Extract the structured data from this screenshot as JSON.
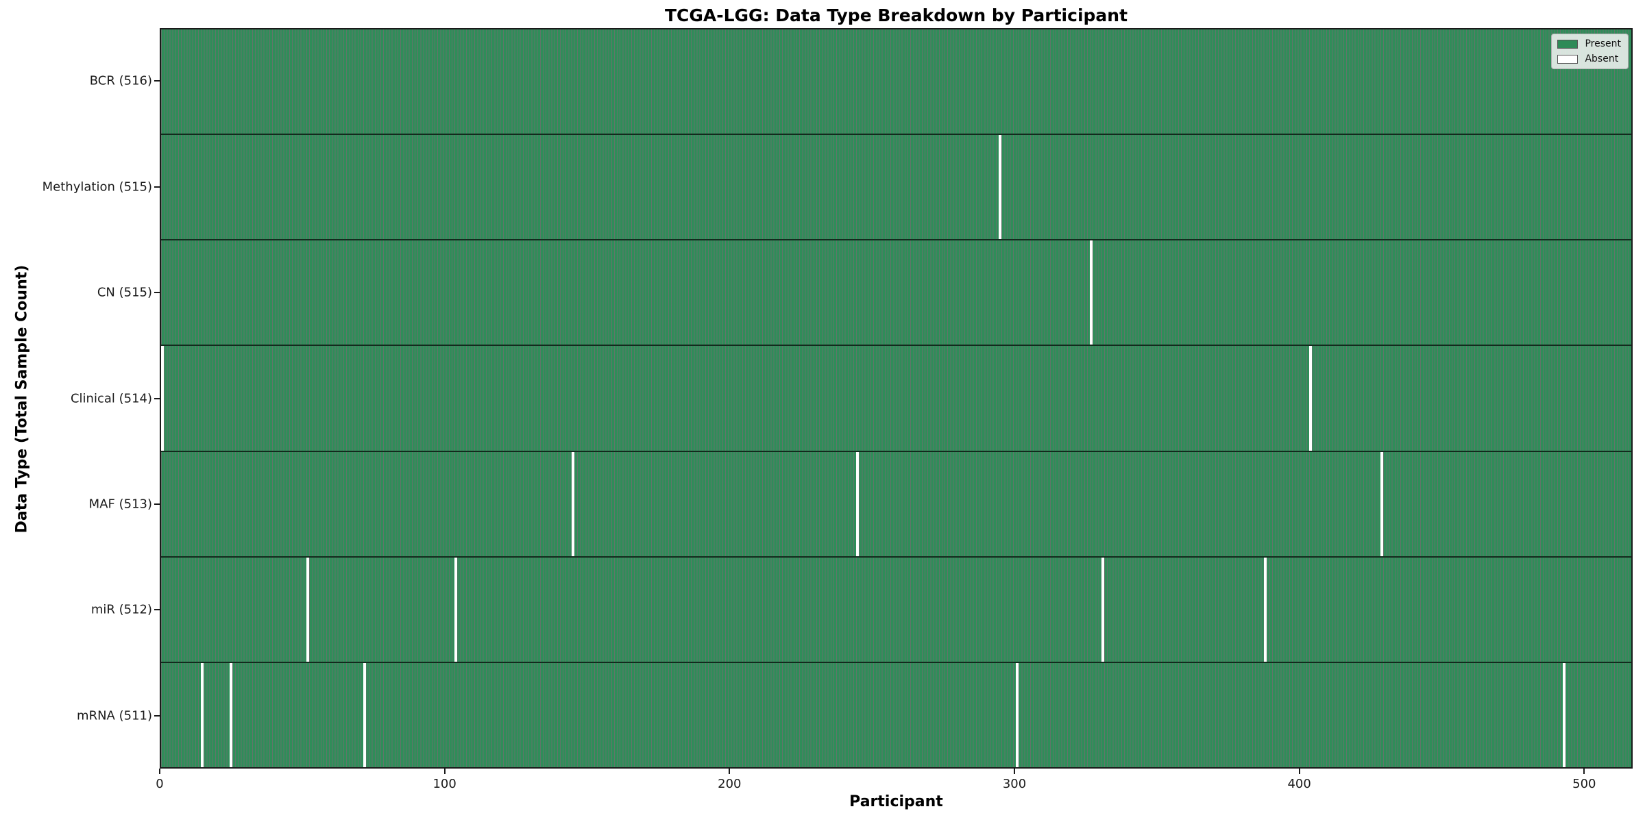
{
  "chart_data": {
    "type": "heatmap",
    "title": "TCGA-LGG: Data Type Breakdown by Participant",
    "xlabel": "Participant",
    "ylabel": "Data Type (Total Sample Count)",
    "x_ticks": [
      0,
      100,
      200,
      300,
      400,
      500
    ],
    "xlim": [
      0,
      517
    ],
    "n_participants": 516,
    "grid": false,
    "legend_position": "upper right",
    "legend": [
      {
        "label": "Present",
        "color": "#2e8b57"
      },
      {
        "label": "Absent",
        "color": "#ffffff"
      }
    ],
    "rows": [
      {
        "label": "BCR (516)",
        "data_type": "BCR",
        "total": 516,
        "absent_participants": []
      },
      {
        "label": "Methylation (515)",
        "data_type": "Methylation",
        "total": 515,
        "absent_participants": [
          294
        ]
      },
      {
        "label": "CN (515)",
        "data_type": "CN",
        "total": 515,
        "absent_participants": [
          326
        ]
      },
      {
        "label": "Clinical (514)",
        "data_type": "Clinical",
        "total": 514,
        "absent_participants": [
          0,
          403
        ]
      },
      {
        "label": "MAF (513)",
        "data_type": "MAF",
        "total": 513,
        "absent_participants": [
          144,
          244,
          428
        ]
      },
      {
        "label": "miR (512)",
        "data_type": "miR",
        "total": 512,
        "absent_participants": [
          51,
          103,
          330,
          387
        ]
      },
      {
        "label": "mRNA (511)",
        "data_type": "mRNA",
        "total": 511,
        "absent_participants": [
          14,
          24,
          71,
          300,
          492
        ]
      }
    ],
    "colors": {
      "present_fill": "#2f8d59",
      "column_edge": "rgba(13, 43, 27, 0.65)",
      "absent_fill": "#ffffff",
      "axis": "#1a1a1a"
    }
  }
}
